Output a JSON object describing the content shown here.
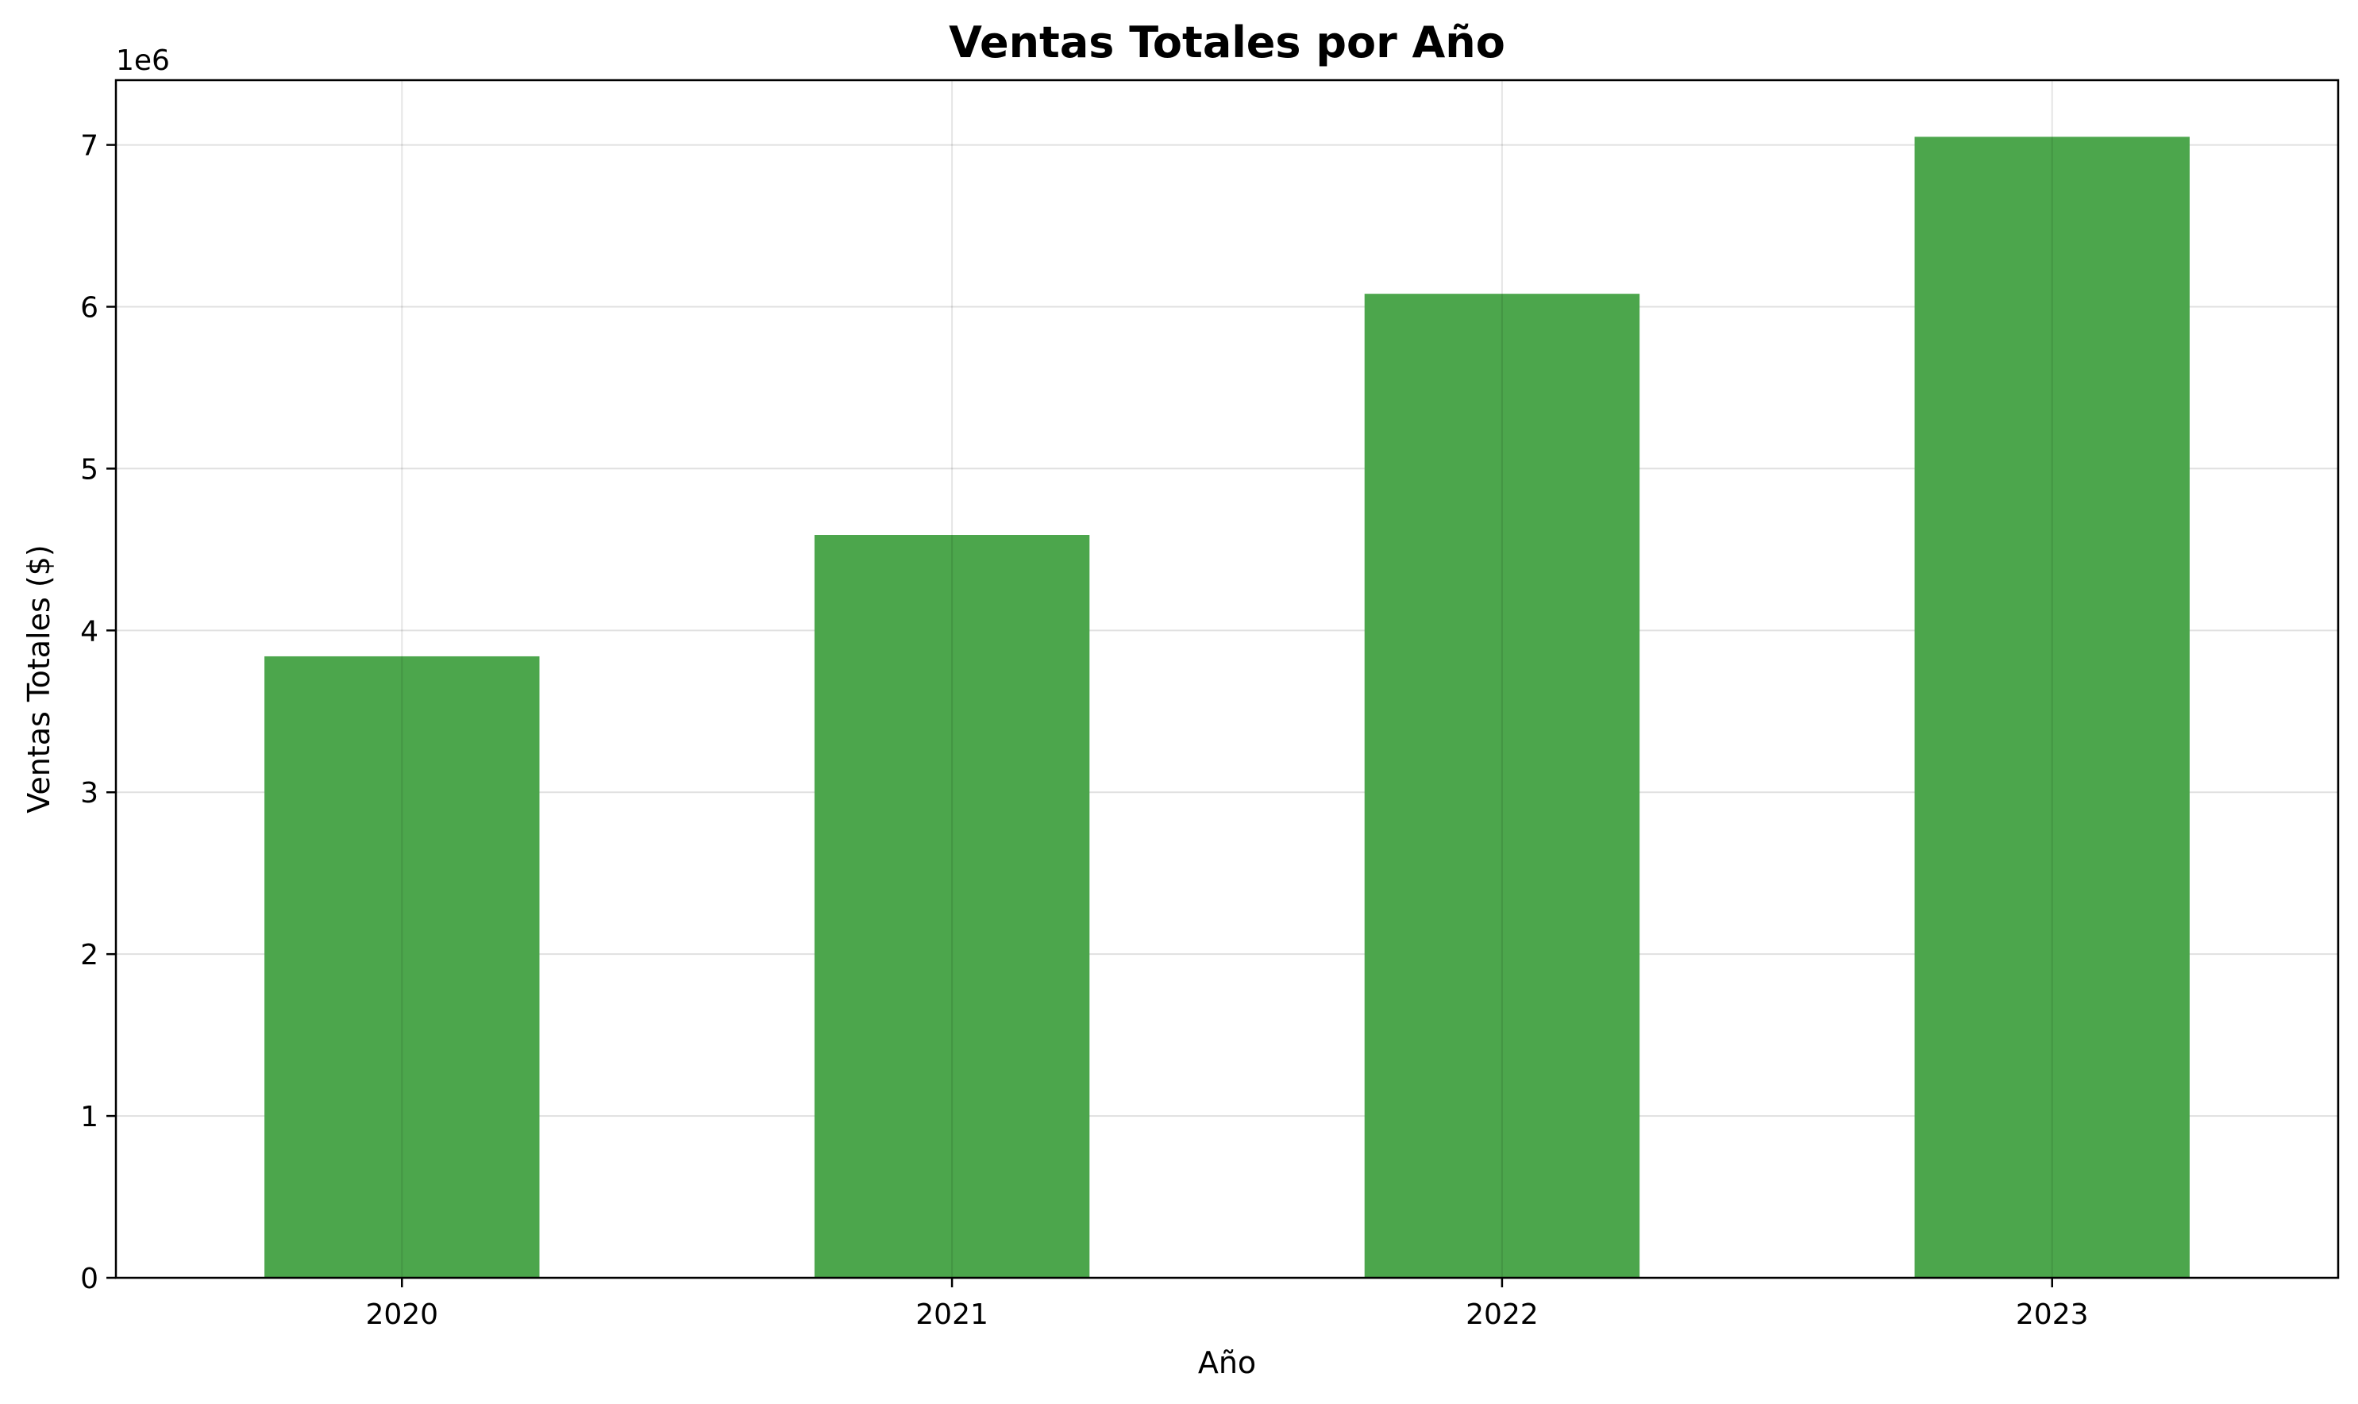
{
  "chart_data": {
    "type": "bar",
    "title": "Ventas Totales por Año",
    "xlabel": "Año",
    "ylabel": "Ventas Totales ($)",
    "y_offset_label": "1e6",
    "categories": [
      "2020",
      "2021",
      "2022",
      "2023"
    ],
    "values": [
      3840000,
      4590000,
      6080000,
      7050000
    ],
    "ylim": [
      0,
      7400000
    ],
    "yticks": [
      0,
      1,
      2,
      3,
      4,
      5,
      6,
      7
    ],
    "ytick_scale": 1000000,
    "grid": true,
    "legend": "none",
    "bar_color": "#4ca64c"
  }
}
